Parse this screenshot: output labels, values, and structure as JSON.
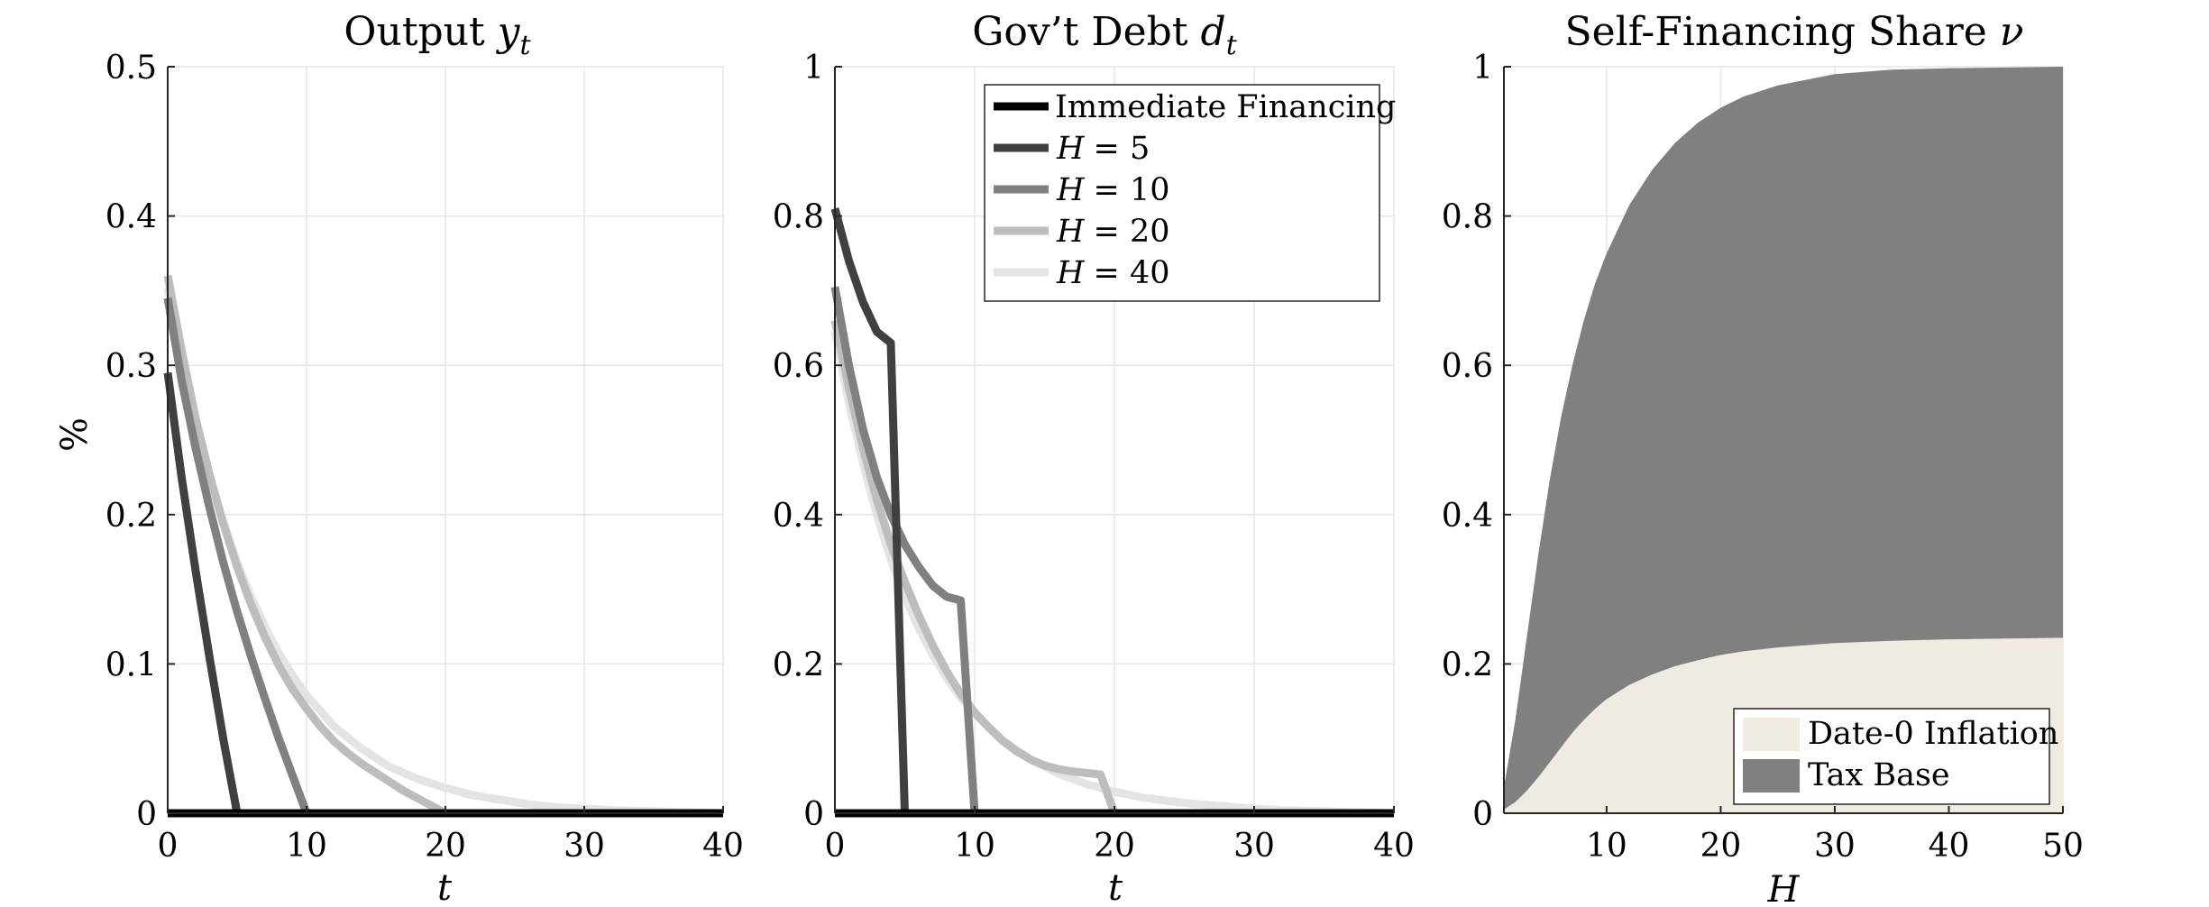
{
  "chart_data": [
    {
      "type": "line",
      "title": "Output y_t",
      "title_main": "Output ",
      "title_var": "y",
      "title_sub": "t",
      "xlabel": "t",
      "ylabel": "%",
      "xlim": [
        0,
        40
      ],
      "ylim": [
        0,
        0.5
      ],
      "xticks": [
        0,
        10,
        20,
        30,
        40
      ],
      "yticks": [
        0,
        0.1,
        0.2,
        0.3,
        0.4,
        0.5
      ],
      "xtick_labels": [
        "0",
        "10",
        "20",
        "30",
        "40"
      ],
      "ytick_labels": [
        "0",
        "0.1",
        "0.2",
        "0.3",
        "0.4",
        "0.5"
      ],
      "grid": true,
      "series": [
        {
          "name": "Immediate Financing",
          "color": "#000000",
          "x": [
            0,
            5,
            40
          ],
          "y": [
            0,
            0,
            0
          ]
        },
        {
          "name": "H = 5",
          "color": "#404040",
          "x": [
            0,
            1,
            2,
            3,
            4,
            5,
            40
          ],
          "y": [
            0.295,
            0.225,
            0.163,
            0.105,
            0.05,
            0,
            0
          ]
        },
        {
          "name": "H = 10",
          "color": "#808080",
          "x": [
            0,
            1,
            2,
            3,
            4,
            5,
            6,
            7,
            8,
            9,
            10,
            40
          ],
          "y": [
            0.345,
            0.29,
            0.245,
            0.205,
            0.168,
            0.135,
            0.105,
            0.077,
            0.05,
            0.025,
            0,
            0
          ]
        },
        {
          "name": "H = 20",
          "color": "#bdbdbd",
          "x": [
            0,
            1,
            2,
            3,
            4,
            5,
            6,
            7,
            8,
            9,
            10,
            11,
            12,
            13,
            14,
            15,
            16,
            17,
            18,
            19,
            20,
            40
          ],
          "y": [
            0.36,
            0.31,
            0.265,
            0.227,
            0.194,
            0.165,
            0.14,
            0.118,
            0.099,
            0.083,
            0.07,
            0.058,
            0.048,
            0.04,
            0.033,
            0.027,
            0.021,
            0.015,
            0.01,
            0.005,
            0,
            0
          ]
        },
        {
          "name": "H = 40",
          "color": "#e4e4e4",
          "x": [
            0,
            1,
            2,
            3,
            4,
            5,
            6,
            7,
            8,
            9,
            10,
            12,
            14,
            16,
            18,
            20,
            22,
            24,
            26,
            28,
            30,
            32,
            34,
            36,
            38,
            40
          ],
          "y": [
            0.352,
            0.306,
            0.264,
            0.227,
            0.195,
            0.168,
            0.145,
            0.125,
            0.107,
            0.092,
            0.079,
            0.058,
            0.043,
            0.031,
            0.023,
            0.017,
            0.012,
            0.009,
            0.006,
            0.004,
            0.003,
            0.002,
            0.0015,
            0.001,
            0.0005,
            0
          ]
        }
      ]
    },
    {
      "type": "line",
      "title": "Gov't Debt d_t",
      "title_main": "Gov’t Debt ",
      "title_var": "d",
      "title_sub": "t",
      "xlabel": "t",
      "ylabel": "",
      "xlim": [
        0,
        40
      ],
      "ylim": [
        0,
        1
      ],
      "xticks": [
        0,
        10,
        20,
        30,
        40
      ],
      "yticks": [
        0,
        0.2,
        0.4,
        0.6,
        0.8,
        1
      ],
      "xtick_labels": [
        "0",
        "10",
        "20",
        "30",
        "40"
      ],
      "ytick_labels": [
        "0",
        "0.2",
        "0.4",
        "0.6",
        "0.8",
        "1"
      ],
      "grid": true,
      "legend": {
        "placement": "top-right",
        "entries": [
          {
            "label": "Immediate Financing",
            "color": "#000000",
            "math": false,
            "value": ""
          },
          {
            "label": "H",
            "color": "#404040",
            "math": true,
            "value": "= 5"
          },
          {
            "label": "H",
            "color": "#808080",
            "math": true,
            "value": "= 10"
          },
          {
            "label": "H",
            "color": "#bdbdbd",
            "math": true,
            "value": "= 20"
          },
          {
            "label": "H",
            "color": "#e4e4e4",
            "math": true,
            "value": "= 40"
          }
        ]
      },
      "series": [
        {
          "name": "Immediate Financing",
          "color": "#000000",
          "x": [
            0,
            5,
            40
          ],
          "y": [
            0,
            0,
            0
          ]
        },
        {
          "name": "H = 5",
          "color": "#404040",
          "x": [
            0,
            1,
            2,
            3,
            4,
            5,
            40
          ],
          "y": [
            0.81,
            0.74,
            0.685,
            0.645,
            0.63,
            0,
            0
          ]
        },
        {
          "name": "H = 10",
          "color": "#808080",
          "x": [
            0,
            1,
            2,
            3,
            4,
            5,
            6,
            7,
            8,
            9,
            10,
            40
          ],
          "y": [
            0.705,
            0.6,
            0.515,
            0.45,
            0.4,
            0.36,
            0.33,
            0.305,
            0.29,
            0.285,
            0,
            0
          ]
        },
        {
          "name": "H = 20",
          "color": "#bdbdbd",
          "x": [
            0,
            1,
            2,
            3,
            4,
            5,
            6,
            7,
            8,
            9,
            10,
            11,
            12,
            13,
            14,
            15,
            16,
            17,
            18,
            19,
            20,
            40
          ],
          "y": [
            0.66,
            0.57,
            0.49,
            0.42,
            0.36,
            0.31,
            0.265,
            0.225,
            0.19,
            0.16,
            0.135,
            0.115,
            0.097,
            0.083,
            0.072,
            0.064,
            0.059,
            0.056,
            0.054,
            0.052,
            0,
            0
          ]
        },
        {
          "name": "H = 40",
          "color": "#e4e4e4",
          "x": [
            0,
            1,
            2,
            3,
            4,
            5,
            6,
            7,
            8,
            9,
            10,
            12,
            14,
            16,
            18,
            20,
            22,
            24,
            26,
            28,
            30,
            32,
            34,
            36,
            38,
            40
          ],
          "y": [
            0.645,
            0.55,
            0.47,
            0.4,
            0.34,
            0.29,
            0.248,
            0.212,
            0.181,
            0.155,
            0.133,
            0.098,
            0.072,
            0.053,
            0.039,
            0.029,
            0.021,
            0.016,
            0.012,
            0.009,
            0.006,
            0.004,
            0.003,
            0.002,
            0.001,
            0
          ]
        }
      ]
    },
    {
      "type": "area",
      "title": "Self-Financing Share ν",
      "title_main": "Self-Financing Share ",
      "title_var": "ν",
      "title_sub": "",
      "xlabel": "H",
      "ylabel": "",
      "xlim": [
        1,
        50
      ],
      "ylim": [
        0,
        1
      ],
      "xticks": [
        10,
        20,
        30,
        40,
        50
      ],
      "yticks": [
        0,
        0.2,
        0.4,
        0.6,
        0.8,
        1
      ],
      "xtick_labels": [
        "10",
        "20",
        "30",
        "40",
        "50"
      ],
      "ytick_labels": [
        "0",
        "0.2",
        "0.4",
        "0.6",
        "0.8",
        "1"
      ],
      "grid": true,
      "legend": {
        "placement": "bottom-right",
        "entries": [
          {
            "label": "Date-0 Inflation",
            "color": "#efebe0"
          },
          {
            "label": "Tax Base",
            "color": "#808080"
          }
        ]
      },
      "x": [
        1,
        2,
        3,
        4,
        5,
        6,
        7,
        8,
        9,
        10,
        12,
        14,
        16,
        18,
        20,
        22,
        25,
        30,
        35,
        40,
        45,
        50
      ],
      "series": [
        {
          "name": "Date-0 Inflation",
          "color": "#efebe0",
          "values": [
            0.005,
            0.015,
            0.03,
            0.048,
            0.068,
            0.088,
            0.108,
            0.125,
            0.14,
            0.153,
            0.172,
            0.186,
            0.197,
            0.205,
            0.212,
            0.217,
            0.222,
            0.228,
            0.231,
            0.233,
            0.234,
            0.235
          ]
        },
        {
          "name": "Tax Base",
          "color": "#808080",
          "values": [
            0.035,
            0.125,
            0.235,
            0.345,
            0.445,
            0.53,
            0.6,
            0.66,
            0.71,
            0.75,
            0.815,
            0.862,
            0.898,
            0.925,
            0.945,
            0.96,
            0.975,
            0.99,
            0.996,
            0.998,
            0.999,
            1.0
          ]
        }
      ]
    }
  ]
}
